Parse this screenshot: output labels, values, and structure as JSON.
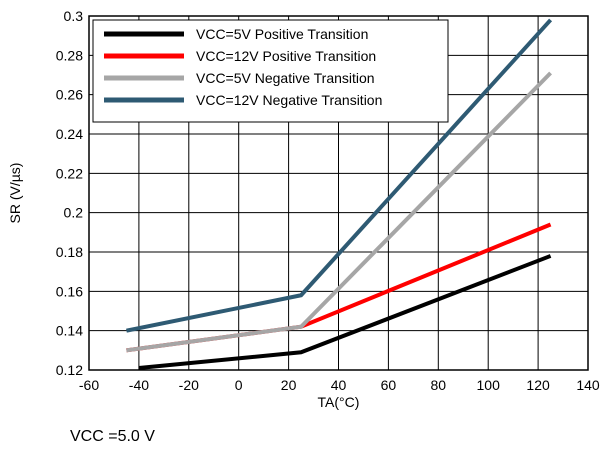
{
  "chart_data": {
    "type": "line",
    "xlabel": "TA(°C)",
    "ylabel": "SR (V/µs)",
    "xlim": [
      -60,
      140
    ],
    "ylim": [
      0.12,
      0.3
    ],
    "xticks": [
      -60,
      -40,
      -20,
      0,
      20,
      40,
      60,
      80,
      100,
      120,
      140
    ],
    "yticks": [
      0.12,
      0.14,
      0.16,
      0.18,
      0.2,
      0.22,
      0.24,
      0.26,
      0.28,
      0.3
    ],
    "xtick_labels": [
      "-60",
      "-40",
      "-20",
      "0",
      "20",
      "40",
      "60",
      "80",
      "100",
      "120",
      "140"
    ],
    "ytick_labels": [
      "0.12",
      "0.14",
      "0.16",
      "0.18",
      "0.2",
      "0.22",
      "0.24",
      "0.26",
      "0.28",
      "0.3"
    ],
    "grid": true,
    "legend_position": "top-left",
    "series": [
      {
        "name": "VCC=5V Positive Transition",
        "color": "#000000",
        "x": [
          -40,
          25,
          125
        ],
        "y": [
          0.121,
          0.129,
          0.178
        ]
      },
      {
        "name": "VCC=12V Positive Transition",
        "color": "#ff0000",
        "x": [
          -45,
          25,
          125
        ],
        "y": [
          0.13,
          0.142,
          0.194
        ]
      },
      {
        "name": "VCC=5V Negative Transition",
        "color": "#a6a6a6",
        "x": [
          -45,
          25,
          125
        ],
        "y": [
          0.13,
          0.142,
          0.271
        ]
      },
      {
        "name": "VCC=12V Negative Transition",
        "color": "#2e5a73",
        "x": [
          -45,
          25,
          125
        ],
        "y": [
          0.14,
          0.158,
          0.298
        ]
      }
    ]
  },
  "footnote": "VCC =5.0 V"
}
